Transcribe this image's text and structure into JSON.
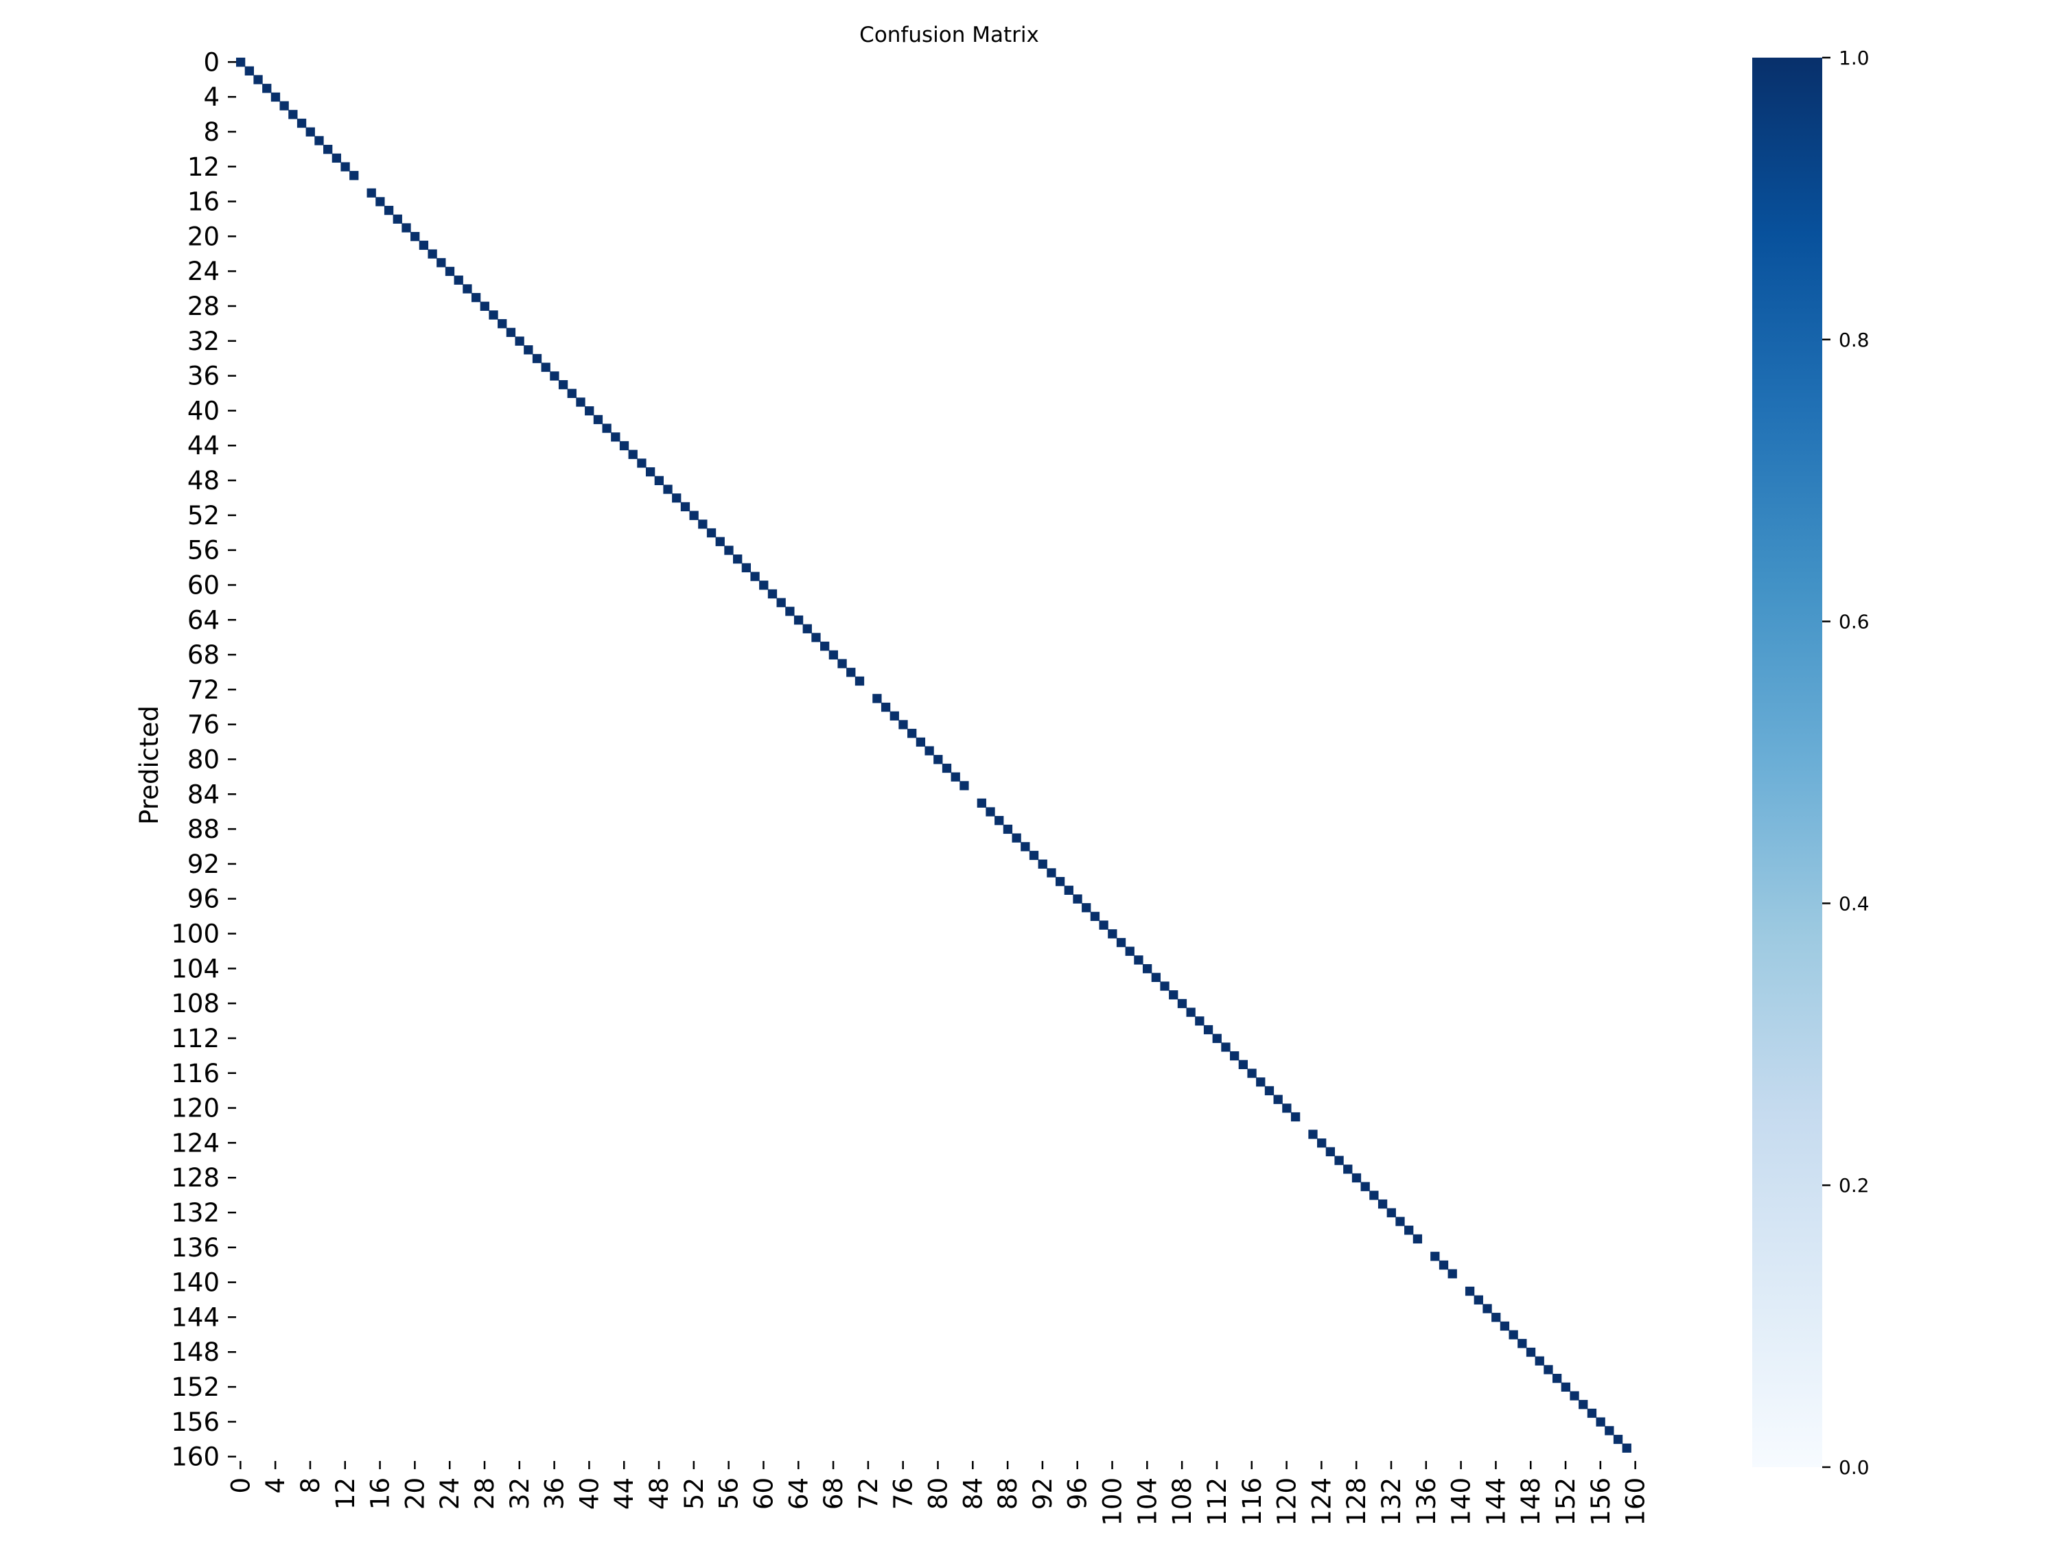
{
  "chart_data": {
    "type": "heatmap",
    "title": "Confusion Matrix",
    "xlabel": "",
    "ylabel": "Predicted",
    "n_classes": 161,
    "x_tick_labels": [
      "0",
      "4",
      "8",
      "12",
      "16",
      "20",
      "24",
      "28",
      "32",
      "36",
      "40",
      "44",
      "48",
      "52",
      "56",
      "60",
      "64",
      "68",
      "72",
      "76",
      "80",
      "84",
      "88",
      "92",
      "96",
      "100",
      "104",
      "108",
      "112",
      "116",
      "120",
      "124",
      "128",
      "132",
      "136",
      "140",
      "144",
      "148",
      "152",
      "156",
      "160"
    ],
    "y_tick_labels": [
      "0",
      "4",
      "8",
      "12",
      "16",
      "20",
      "24",
      "28",
      "32",
      "36",
      "40",
      "44",
      "48",
      "52",
      "56",
      "60",
      "64",
      "68",
      "72",
      "76",
      "80",
      "84",
      "88",
      "92",
      "96",
      "100",
      "104",
      "108",
      "112",
      "116",
      "120",
      "124",
      "128",
      "132",
      "136",
      "140",
      "144",
      "148",
      "152",
      "156",
      "160"
    ],
    "values_description_note": "",
    "cells": {
      "diagonal_value": 1.0,
      "diagonal_empty_indices": [
        14,
        72,
        84,
        122,
        136,
        140,
        160
      ],
      "off_diagonal_value": 0.0
    },
    "colorbar": {
      "range": [
        0.0,
        1.0
      ],
      "tick_labels": [
        "0.0",
        "0.2",
        "0.4",
        "0.6",
        "0.8",
        "1.0"
      ],
      "tick_values": [
        0.0,
        0.2,
        0.4,
        0.6,
        0.8,
        1.0
      ],
      "colormap": "Blues",
      "color_stops": [
        "#f7fbff",
        "#deebf7",
        "#c6dbef",
        "#9ecae1",
        "#6baed6",
        "#4292c6",
        "#2171b5",
        "#08519c",
        "#08306b"
      ]
    },
    "grid": false
  }
}
